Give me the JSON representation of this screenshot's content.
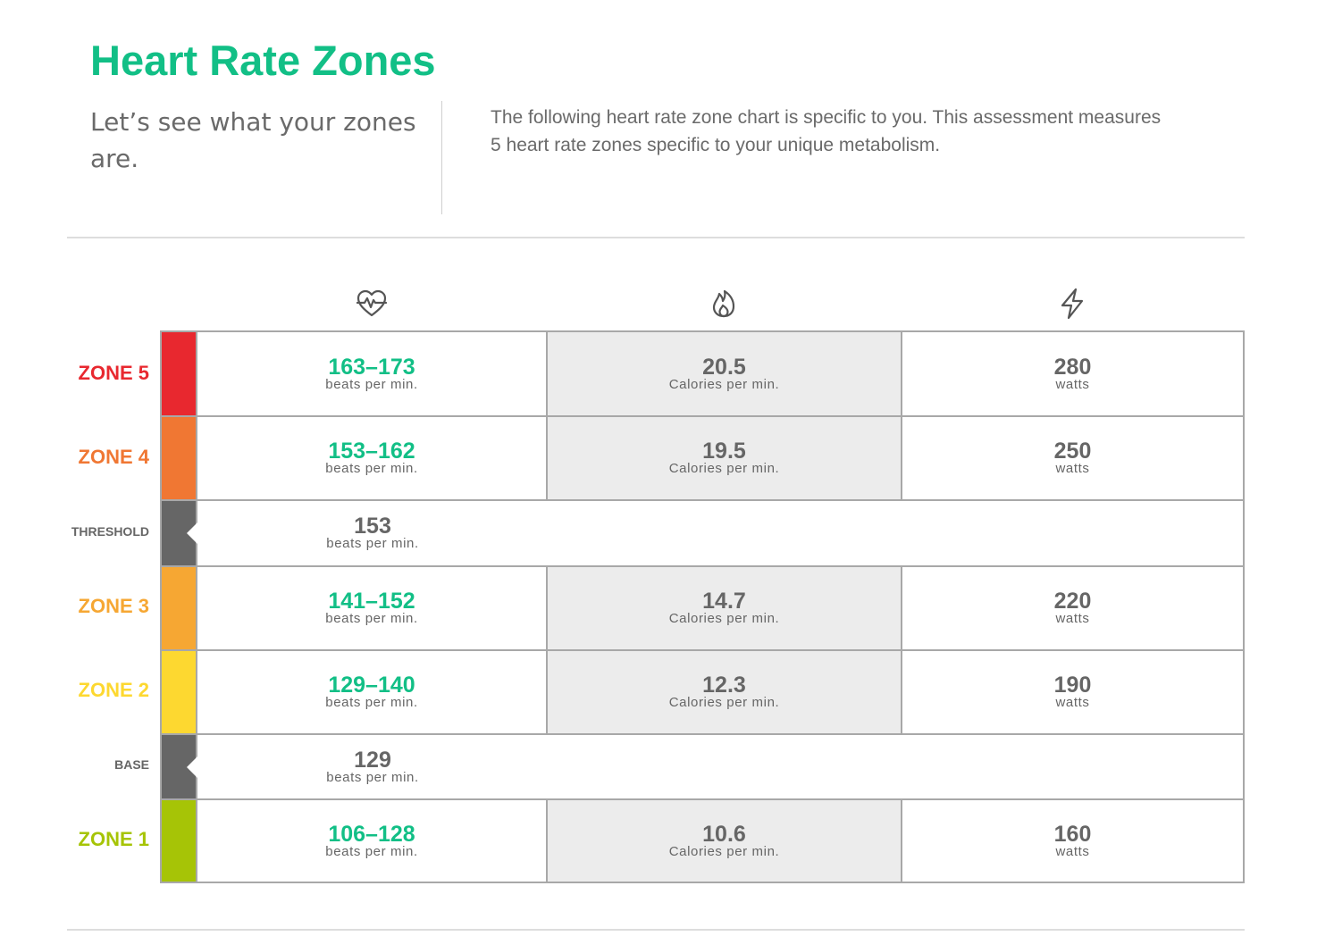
{
  "header": {
    "title": "Heart Rate Zones",
    "intro_left": "Let’s see what your zones are.",
    "intro_right": "The following heart rate zone chart is specific to you. This assessment measures 5 heart rate zones specific to your unique metabolism."
  },
  "columns": {
    "icons": [
      "heart-rate-icon",
      "flame-icon",
      "lightning-bolt-icon"
    ]
  },
  "colors": {
    "accent_green": "#12bf86",
    "zone5": "#e8282f",
    "zone4": "#f07733",
    "zone3": "#f6a733",
    "zone2": "#fdd830",
    "zone1": "#a6c406",
    "marker_gray": "#666666",
    "calorie_bg": "#ececec"
  },
  "rows": [
    {
      "label": "ZONE 5",
      "bpm": "163–173",
      "bpm_unit": "beats per min.",
      "calories": "20.5",
      "cal_unit": "Calories per min.",
      "watts": "280",
      "watt_unit": "watts"
    },
    {
      "label": "ZONE 4",
      "bpm": "153–162",
      "bpm_unit": "beats per min.",
      "calories": "19.5",
      "cal_unit": "Calories per min.",
      "watts": "250",
      "watt_unit": "watts"
    },
    {
      "label": "THRESHOLD",
      "bpm": "153",
      "bpm_unit": "beats per min."
    },
    {
      "label": "ZONE 3",
      "bpm": "141–152",
      "bpm_unit": "beats per min.",
      "calories": "14.7",
      "cal_unit": "Calories per min.",
      "watts": "220",
      "watt_unit": "watts"
    },
    {
      "label": "ZONE 2",
      "bpm": "129–140",
      "bpm_unit": "beats per min.",
      "calories": "12.3",
      "cal_unit": "Calories per min.",
      "watts": "190",
      "watt_unit": "watts"
    },
    {
      "label": "BASE",
      "bpm": "129",
      "bpm_unit": "beats per min."
    },
    {
      "label": "ZONE 1",
      "bpm": "106–128",
      "bpm_unit": "beats per min.",
      "calories": "10.6",
      "cal_unit": "Calories per min.",
      "watts": "160",
      "watt_unit": "watts"
    }
  ]
}
